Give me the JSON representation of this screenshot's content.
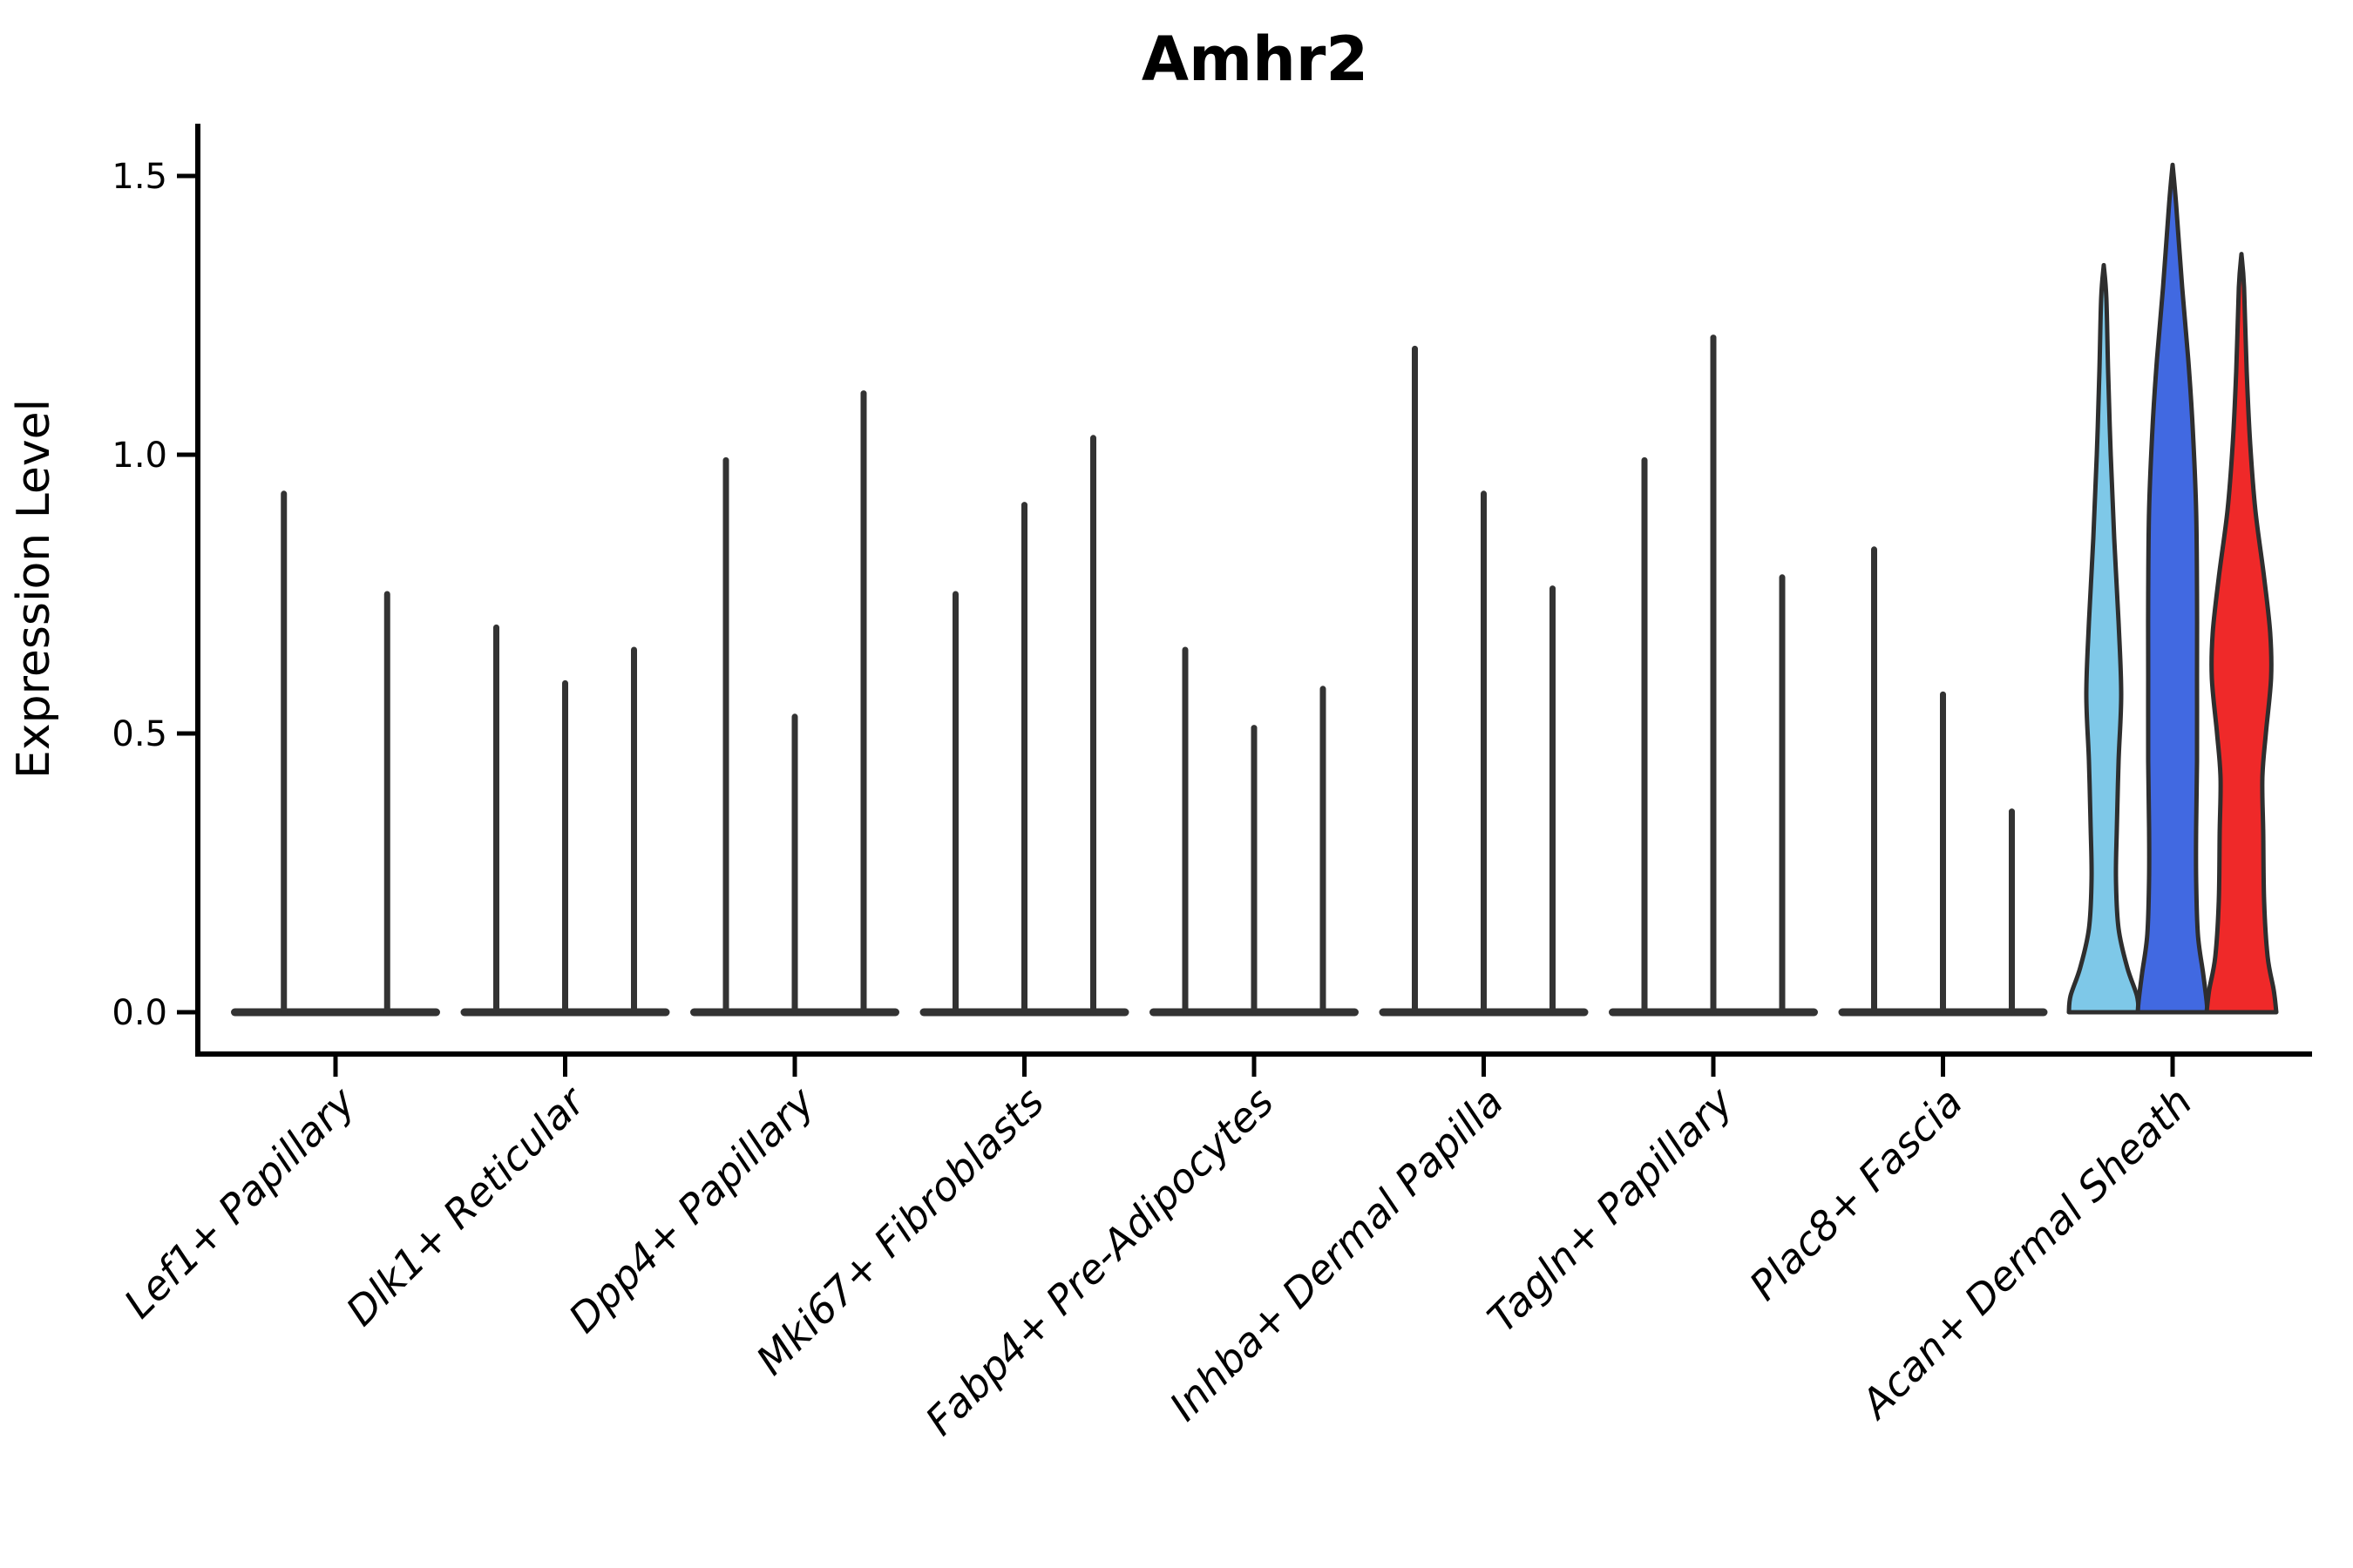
{
  "chart_data": {
    "type": "violin",
    "title": "Amhr2",
    "xlabel": "",
    "ylabel": "Expression Level",
    "ylim": [
      0,
      1.56
    ],
    "yticks": [
      0.0,
      0.5,
      1.0,
      1.5
    ],
    "ytick_labels": [
      "0.0",
      "0.5",
      "1.0",
      "1.5"
    ],
    "legend": "none",
    "grid": false,
    "categories": [
      "Lef1+ Papillary",
      "Dlk1+ Reticular",
      "Dpp4+ Papillary",
      "Mki67+ Fibroblasts",
      "Fabp4+ Pre-Adipocytes",
      "Inhba+ Dermal Papilla",
      "Tagln+ Papillary",
      "Plac8+ Fascia",
      "Acan+ Dermal Sheath"
    ],
    "groups": [
      {
        "category": "Lef1+ Papillary",
        "violins": [
          {
            "max": 0.93
          },
          {
            "max": 0.75
          }
        ]
      },
      {
        "category": "Dlk1+ Reticular",
        "violins": [
          {
            "max": 0.69
          },
          {
            "max": 0.59
          },
          {
            "max": 0.65
          }
        ]
      },
      {
        "category": "Dpp4+ Papillary",
        "violins": [
          {
            "max": 0.99
          },
          {
            "max": 0.53
          },
          {
            "max": 1.11
          }
        ]
      },
      {
        "category": "Mki67+ Fibroblasts",
        "violins": [
          {
            "max": 0.75
          },
          {
            "max": 0.91
          },
          {
            "max": 1.03
          }
        ]
      },
      {
        "category": "Fabp4+ Pre-Adipocytes",
        "violins": [
          {
            "max": 0.65
          },
          {
            "max": 0.51
          },
          {
            "max": 0.58
          }
        ]
      },
      {
        "category": "Inhba+ Dermal Papilla",
        "violins": [
          {
            "max": 1.19
          },
          {
            "max": 0.93
          },
          {
            "max": 0.76
          }
        ]
      },
      {
        "category": "Tagln+ Papillary",
        "violins": [
          {
            "max": 0.99
          },
          {
            "max": 1.21
          },
          {
            "max": 0.78
          }
        ]
      },
      {
        "category": "Plac8+ Fascia",
        "violins": [
          {
            "max": 0.83
          },
          {
            "max": 0.57
          },
          {
            "max": 0.36
          }
        ]
      },
      {
        "category": "Acan+ Dermal Sheath",
        "violins": [
          {
            "max": 1.34,
            "fill": "#7EC8E8",
            "profile": [
              [
                1.34,
                0
              ],
              [
                1.28,
                3
              ],
              [
                1.15,
                5
              ],
              [
                1.0,
                8
              ],
              [
                0.85,
                12
              ],
              [
                0.7,
                17
              ],
              [
                0.57,
                20
              ],
              [
                0.45,
                17
              ],
              [
                0.33,
                15
              ],
              [
                0.24,
                14
              ],
              [
                0.15,
                17
              ],
              [
                0.08,
                27
              ],
              [
                0.03,
                38
              ],
              [
                0.0,
                40
              ]
            ]
          },
          {
            "max": 1.52,
            "fill": "#4169E1",
            "profile": [
              [
                1.52,
                0
              ],
              [
                1.45,
                4
              ],
              [
                1.3,
                11
              ],
              [
                1.17,
                18
              ],
              [
                1.05,
                23
              ],
              [
                0.9,
                27
              ],
              [
                0.75,
                28
              ],
              [
                0.6,
                28
              ],
              [
                0.45,
                28
              ],
              [
                0.33,
                27
              ],
              [
                0.24,
                27
              ],
              [
                0.14,
                29
              ],
              [
                0.07,
                35
              ],
              [
                0.02,
                39
              ],
              [
                0.0,
                40
              ]
            ]
          },
          {
            "max": 1.36,
            "fill": "#EF2929",
            "profile": [
              [
                1.36,
                0
              ],
              [
                1.3,
                3
              ],
              [
                1.15,
                6
              ],
              [
                1.02,
                10
              ],
              [
                0.9,
                16
              ],
              [
                0.78,
                26
              ],
              [
                0.68,
                33
              ],
              [
                0.6,
                34
              ],
              [
                0.5,
                28
              ],
              [
                0.42,
                24
              ],
              [
                0.32,
                25
              ],
              [
                0.2,
                26
              ],
              [
                0.1,
                30
              ],
              [
                0.04,
                37
              ],
              [
                0.0,
                40
              ]
            ]
          }
        ]
      }
    ],
    "style": {
      "stick_color": "#333333",
      "outline_color": "#2E2E2E",
      "axis_color": "#000000",
      "background": "#FFFFFF"
    }
  }
}
